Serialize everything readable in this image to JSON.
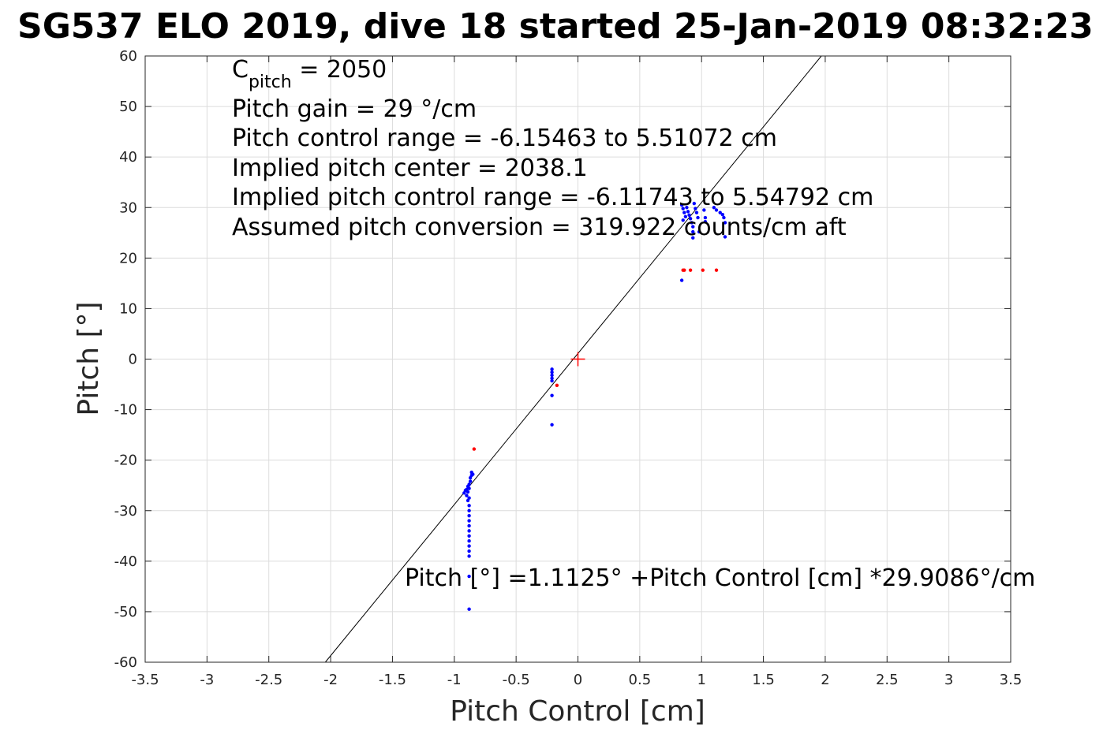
{
  "chart_data": {
    "type": "scatter",
    "title": "SG537 ELO 2019, dive 18 started 25-Jan-2019 08:32:23",
    "xlabel": "Pitch Control [cm]",
    "ylabel": "Pitch [°]",
    "xlim": [
      -3.5,
      3.5
    ],
    "ylim": [
      -60,
      60
    ],
    "xticks": [
      "-3.5",
      "-3",
      "-2.5",
      "-2",
      "-1.5",
      "-1",
      "-0.5",
      "0",
      "0.5",
      "1",
      "1.5",
      "2",
      "2.5",
      "3",
      "3.5"
    ],
    "yticks": [
      "-60",
      "-50",
      "-40",
      "-30",
      "-20",
      "-10",
      "0",
      "10",
      "20",
      "30",
      "40",
      "50",
      "60"
    ],
    "grid": true,
    "annotations": {
      "c_pitch_symbol": "C",
      "c_pitch_subscript": "pitch",
      "c_pitch_value": " = 2050",
      "pitch_gain": "Pitch gain = 29 °/cm",
      "control_range": "Pitch control range = -6.15463 to 5.51072 cm",
      "implied_center": "Implied pitch center = 2038.1",
      "implied_range": "Implied pitch control range = -6.11743 to 5.54792 cm",
      "conversion": "Assumed pitch conversion = 319.922 counts/cm aft",
      "fit_equation": "Pitch [°] =1.1125° +Pitch Control [cm] *29.9086°/cm"
    },
    "fit_line": {
      "intercept": 1.1125,
      "slope": 29.9086,
      "color": "#000000"
    },
    "center_marker": {
      "x": 0,
      "y": 0,
      "color": "#ff0000"
    },
    "series": [
      {
        "color": "#0000ff",
        "points": [
          [
            -0.92,
            -26.5
          ],
          [
            -0.91,
            -26.0
          ],
          [
            -0.9,
            -25.8
          ],
          [
            -0.9,
            -27.0
          ],
          [
            -0.89,
            -25.2
          ],
          [
            -0.89,
            -26.3
          ],
          [
            -0.88,
            -24.8
          ],
          [
            -0.88,
            -25.6
          ],
          [
            -0.87,
            -24.2
          ],
          [
            -0.87,
            -23.5
          ],
          [
            -0.86,
            -23.0
          ],
          [
            -0.86,
            -22.4
          ],
          [
            -0.85,
            -22.8
          ],
          [
            -0.88,
            -27.5
          ],
          [
            -0.89,
            -28.0
          ],
          [
            -0.88,
            -29.0
          ],
          [
            -0.88,
            -30.0
          ],
          [
            -0.88,
            -31.0
          ],
          [
            -0.88,
            -32.0
          ],
          [
            -0.88,
            -33.0
          ],
          [
            -0.88,
            -34.0
          ],
          [
            -0.88,
            -35.0
          ],
          [
            -0.88,
            -36.0
          ],
          [
            -0.88,
            -37.0
          ],
          [
            -0.88,
            -38.0
          ],
          [
            -0.88,
            -39.0
          ],
          [
            -0.88,
            -43.0
          ],
          [
            -0.88,
            -49.5
          ],
          [
            -0.21,
            -2.0
          ],
          [
            -0.21,
            -2.6
          ],
          [
            -0.21,
            -3.2
          ],
          [
            -0.21,
            -3.8
          ],
          [
            -0.21,
            -4.3
          ],
          [
            -0.21,
            -7.2
          ],
          [
            -0.21,
            -13.0
          ],
          [
            0.84,
            30.5
          ],
          [
            0.85,
            29.8
          ],
          [
            0.86,
            29.0
          ],
          [
            0.87,
            28.2
          ],
          [
            0.85,
            27.5
          ],
          [
            0.88,
            30.0
          ],
          [
            0.89,
            29.2
          ],
          [
            0.9,
            28.5
          ],
          [
            0.91,
            27.8
          ],
          [
            0.92,
            27.0
          ],
          [
            0.93,
            26.2
          ],
          [
            0.93,
            25.2
          ],
          [
            0.93,
            24.0
          ],
          [
            0.94,
            30.8
          ],
          [
            0.95,
            29.8
          ],
          [
            0.96,
            29.0
          ],
          [
            0.97,
            28.0
          ],
          [
            0.98,
            25.2
          ],
          [
            1.02,
            29.5
          ],
          [
            1.03,
            28.0
          ],
          [
            1.03,
            27.2
          ],
          [
            1.1,
            30.0
          ],
          [
            1.12,
            29.5
          ],
          [
            1.15,
            29.0
          ],
          [
            1.17,
            28.6
          ],
          [
            1.18,
            28.0
          ],
          [
            1.19,
            27.0
          ],
          [
            1.19,
            24.2
          ],
          [
            0.84,
            15.6
          ]
        ]
      },
      {
        "color": "#ff0000",
        "points": [
          [
            -0.84,
            -17.8
          ],
          [
            -0.17,
            -5.2
          ],
          [
            0.85,
            17.6
          ],
          [
            0.86,
            17.6
          ],
          [
            0.91,
            17.6
          ],
          [
            1.01,
            17.6
          ],
          [
            1.12,
            17.6
          ]
        ]
      }
    ]
  }
}
